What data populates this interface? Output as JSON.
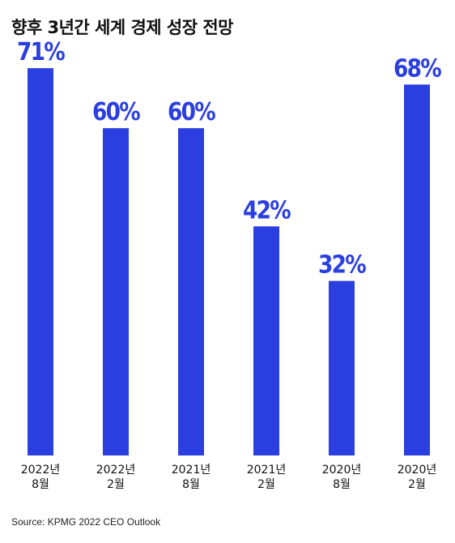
{
  "title": "향후 3년간 세계 경제 성장 전망",
  "source": "Source: KPMG 2022 CEO Outlook",
  "bar_color": "#2b3fe0",
  "chart_data": {
    "type": "bar",
    "title": "향후 3년간 세계 경제 성장 전망",
    "categories": [
      [
        "2022년",
        "8월"
      ],
      [
        "2022년",
        "2월"
      ],
      [
        "2021년",
        "8월"
      ],
      [
        "2021년",
        "2월"
      ],
      [
        "2020년",
        "8월"
      ],
      [
        "2020년",
        "2월"
      ]
    ],
    "values": [
      71,
      60,
      60,
      42,
      32,
      68
    ],
    "value_labels": [
      "71%",
      "60%",
      "60%",
      "42%",
      "32%",
      "68%"
    ],
    "unit": "%",
    "ylim": [
      0,
      78
    ],
    "grid": false,
    "legend": "none"
  }
}
